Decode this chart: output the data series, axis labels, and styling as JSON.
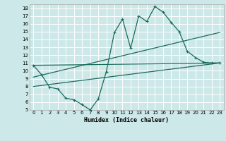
{
  "title": "",
  "xlabel": "Humidex (Indice chaleur)",
  "bg_color": "#cde8e8",
  "grid_color": "#b8d8d8",
  "line_color": "#1a6b5a",
  "xlim": [
    -0.5,
    23.5
  ],
  "ylim": [
    5,
    18.5
  ],
  "xticks": [
    0,
    1,
    2,
    3,
    4,
    5,
    6,
    7,
    8,
    9,
    10,
    11,
    12,
    13,
    14,
    15,
    16,
    17,
    18,
    19,
    20,
    21,
    22,
    23
  ],
  "yticks": [
    5,
    6,
    7,
    8,
    9,
    10,
    11,
    12,
    13,
    14,
    15,
    16,
    17,
    18
  ],
  "curve1_x": [
    0,
    1,
    2,
    3,
    4,
    5,
    6,
    7,
    8,
    9,
    10,
    11,
    12,
    13,
    14,
    15,
    16,
    17,
    18,
    19,
    20,
    21,
    22,
    23
  ],
  "curve1_y": [
    10.7,
    9.5,
    7.9,
    7.7,
    6.5,
    6.3,
    5.7,
    5.0,
    6.4,
    9.9,
    14.9,
    16.6,
    12.9,
    17.0,
    16.3,
    18.2,
    17.5,
    16.2,
    15.0,
    12.5,
    11.7,
    11.1,
    11.0,
    11.0
  ],
  "curve2_x": [
    0,
    23
  ],
  "curve2_y": [
    10.7,
    11.0
  ],
  "curve3_x": [
    0,
    23
  ],
  "curve3_y": [
    9.2,
    14.9
  ],
  "curve4_x": [
    0,
    23
  ],
  "curve4_y": [
    8.0,
    11.0
  ]
}
